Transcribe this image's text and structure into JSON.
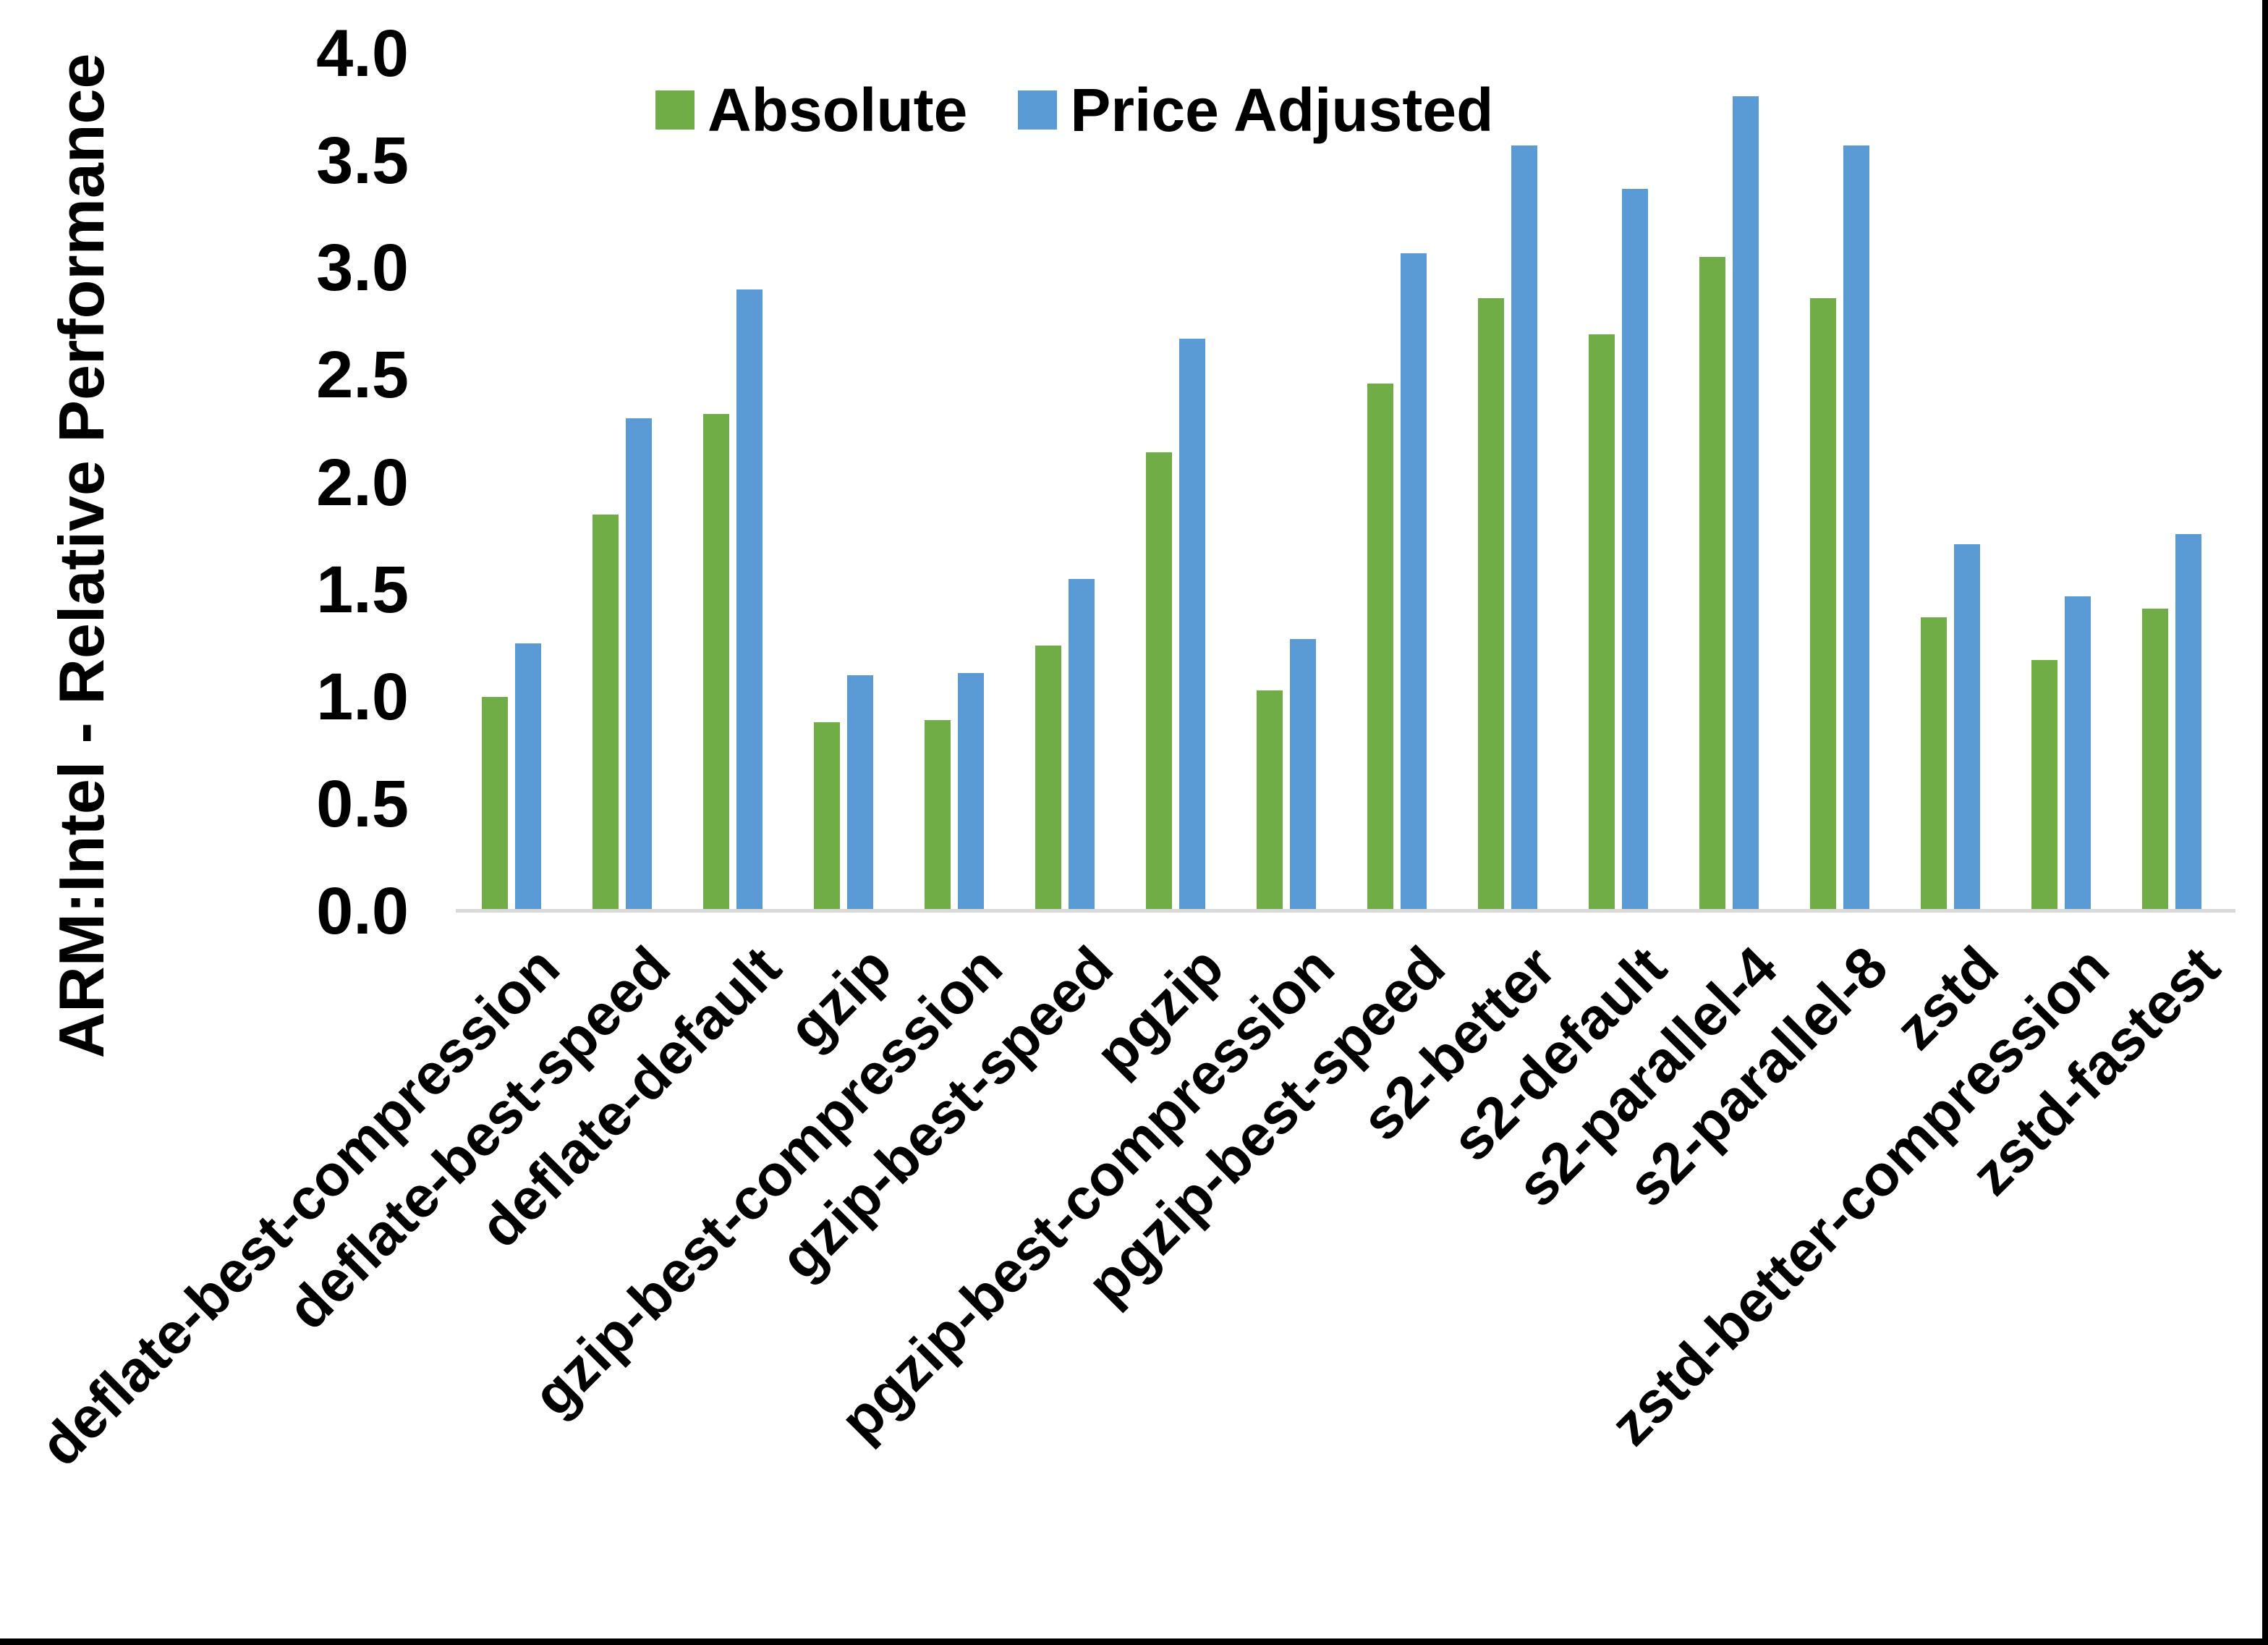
{
  "chart_data": {
    "type": "bar",
    "title": "",
    "xlabel": "",
    "ylabel": "ARM:Intel - Relative Performance",
    "ylim": [
      0.0,
      4.0
    ],
    "ytick_step": 0.5,
    "ytick_labels": [
      "0.0",
      "0.5",
      "1.0",
      "1.5",
      "2.0",
      "2.5",
      "3.0",
      "3.5",
      "4.0"
    ],
    "grid": false,
    "legend_position": "top-center",
    "axis_line_color": "#D9D9D9",
    "categories": [
      "deflate-best-compression",
      "deflate-best-speed",
      "deflate-default",
      "gzip",
      "gzip-best-compression",
      "gzip-best-speed",
      "pgzip",
      "pgzip-best-compression",
      "pgzip-best-speed",
      "s2-better",
      "s2-default",
      "s2-parallel-4",
      "s2-parallel-8",
      "zstd",
      "zstd-better-compression",
      "zstd-fastest"
    ],
    "series": [
      {
        "name": "Absolute",
        "color": "#70AD47",
        "values": [
          1.0,
          1.85,
          2.32,
          0.88,
          0.89,
          1.24,
          2.14,
          1.03,
          2.46,
          2.86,
          2.69,
          3.05,
          2.86,
          1.37,
          1.17,
          1.41
        ]
      },
      {
        "name": "Price Adjusted",
        "color": "#5B9BD5",
        "values": [
          1.25,
          2.3,
          2.9,
          1.1,
          1.11,
          1.55,
          2.67,
          1.27,
          3.07,
          3.57,
          3.37,
          3.8,
          3.57,
          1.71,
          1.47,
          1.76
        ]
      }
    ]
  },
  "frame": {
    "background": "#FFFFFF",
    "right_border_color": "#000000",
    "bottom_border_color": "#000000"
  }
}
